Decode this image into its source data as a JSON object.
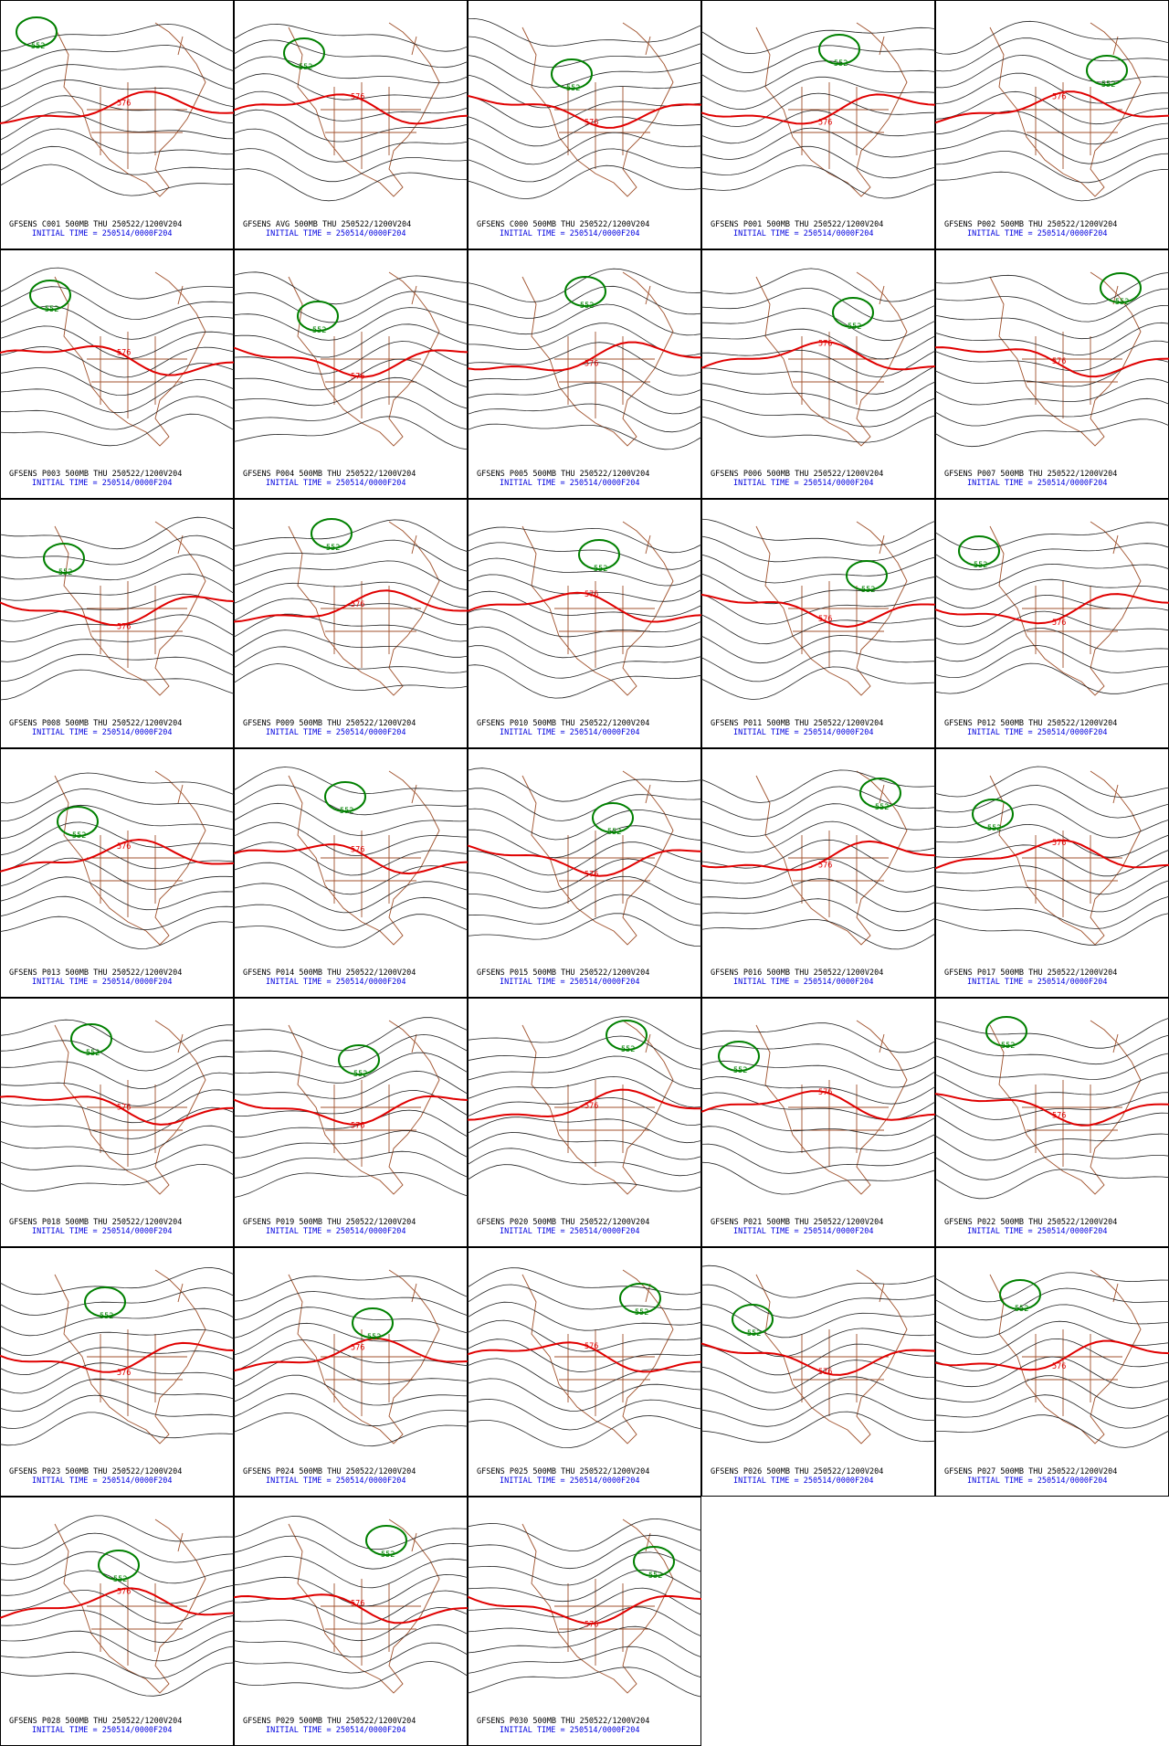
{
  "panels": [
    {
      "title": "GFSENS C001 500MB THU 250522/1200V204",
      "init_time": "INITIAL TIME = 250514/0000F204",
      "contour_labels": [
        "552",
        "576"
      ]
    },
    {
      "title": "GFSENS AVG 500MB THU 250522/1200V204",
      "init_time": "INITIAL TIME = 250514/0000F204",
      "contour_labels": [
        "552",
        "576"
      ]
    },
    {
      "title": "GFSENS C000 500MB THU 250522/1200V204",
      "init_time": "INITIAL TIME = 250514/0000F204",
      "contour_labels": [
        "552",
        "576"
      ]
    },
    {
      "title": "GFSENS P001 500MB THU 250522/1200V204",
      "init_time": "INITIAL TIME = 250514/0000F204",
      "contour_labels": [
        "552",
        "576"
      ]
    },
    {
      "title": "GFSENS P002 500MB THU 250522/1200V204",
      "init_time": "INITIAL TIME = 250514/0000F204",
      "contour_labels": [
        "552",
        "576"
      ]
    },
    {
      "title": "GFSENS P003 500MB THU 250522/1200V204",
      "init_time": "INITIAL TIME = 250514/0000F204",
      "contour_labels": [
        "552",
        "576"
      ]
    },
    {
      "title": "GFSENS P004 500MB THU 250522/1200V204",
      "init_time": "INITIAL TIME = 250514/0000F204",
      "contour_labels": [
        "552",
        "576"
      ]
    },
    {
      "title": "GFSENS P005 500MB THU 250522/1200V204",
      "init_time": "INITIAL TIME = 250514/0000F204",
      "contour_labels": [
        "552",
        "576"
      ]
    },
    {
      "title": "GFSENS P006 500MB THU 250522/1200V204",
      "init_time": "INITIAL TIME = 250514/0000F204",
      "contour_labels": [
        "552",
        "576"
      ]
    },
    {
      "title": "GFSENS P007 500MB THU 250522/1200V204",
      "init_time": "INITIAL TIME = 250514/0000F204",
      "contour_labels": [
        "552",
        "576"
      ]
    },
    {
      "title": "GFSENS P008 500MB THU 250522/1200V204",
      "init_time": "INITIAL TIME = 250514/0000F204",
      "contour_labels": [
        "552",
        "576"
      ]
    },
    {
      "title": "GFSENS P009 500MB THU 250522/1200V204",
      "init_time": "INITIAL TIME = 250514/0000F204",
      "contour_labels": [
        "552",
        "576"
      ]
    },
    {
      "title": "GFSENS P010 500MB THU 250522/1200V204",
      "init_time": "INITIAL TIME = 250514/0000F204",
      "contour_labels": [
        "552",
        "576"
      ]
    },
    {
      "title": "GFSENS P011 500MB THU 250522/1200V204",
      "init_time": "INITIAL TIME = 250514/0000F204",
      "contour_labels": [
        "552",
        "576"
      ]
    },
    {
      "title": "GFSENS P012 500MB THU 250522/1200V204",
      "init_time": "INITIAL TIME = 250514/0000F204",
      "contour_labels": [
        "552",
        "576"
      ]
    },
    {
      "title": "GFSENS P013 500MB THU 250522/1200V204",
      "init_time": "INITIAL TIME = 250514/0000F204",
      "contour_labels": [
        "552",
        "576"
      ]
    },
    {
      "title": "GFSENS P014 500MB THU 250522/1200V204",
      "init_time": "INITIAL TIME = 250514/0000F204",
      "contour_labels": [
        "552",
        "576"
      ]
    },
    {
      "title": "GFSENS P015 500MB THU 250522/1200V204",
      "init_time": "INITIAL TIME = 250514/0000F204",
      "contour_labels": [
        "552",
        "576"
      ]
    },
    {
      "title": "GFSENS P016 500MB THU 250522/1200V204",
      "init_time": "INITIAL TIME = 250514/0000F204",
      "contour_labels": [
        "552",
        "576"
      ]
    },
    {
      "title": "GFSENS P017 500MB THU 250522/1200V204",
      "init_time": "INITIAL TIME = 250514/0000F204",
      "contour_labels": [
        "552",
        "576"
      ]
    },
    {
      "title": "GFSENS P018 500MB THU 250522/1200V204",
      "init_time": "INITIAL TIME = 250514/0000F204",
      "contour_labels": [
        "552",
        "576"
      ]
    },
    {
      "title": "GFSENS P019 500MB THU 250522/1200V204",
      "init_time": "INITIAL TIME = 250514/0000F204",
      "contour_labels": [
        "552",
        "576"
      ]
    },
    {
      "title": "GFSENS P020 500MB THU 250522/1200V204",
      "init_time": "INITIAL TIME = 250514/0000F204",
      "contour_labels": [
        "552",
        "576"
      ]
    },
    {
      "title": "GFSENS P021 500MB THU 250522/1200V204",
      "init_time": "INITIAL TIME = 250514/0000F204",
      "contour_labels": [
        "552",
        "576"
      ]
    },
    {
      "title": "GFSENS P022 500MB THU 250522/1200V204",
      "init_time": "INITIAL TIME = 250514/0000F204",
      "contour_labels": [
        "552",
        "576"
      ]
    },
    {
      "title": "GFSENS P023 500MB THU 250522/1200V204",
      "init_time": "INITIAL TIME = 250514/0000F204",
      "contour_labels": [
        "552",
        "576"
      ]
    },
    {
      "title": "GFSENS P024 500MB THU 250522/1200V204",
      "init_time": "INITIAL TIME = 250514/0000F204",
      "contour_labels": [
        "552",
        "576"
      ]
    },
    {
      "title": "GFSENS P025 500MB THU 250522/1200V204",
      "init_time": "INITIAL TIME = 250514/0000F204",
      "contour_labels": [
        "552",
        "576"
      ]
    },
    {
      "title": "GFSENS P026 500MB THU 250522/1200V204",
      "init_time": "INITIAL TIME = 250514/0000F204",
      "contour_labels": [
        "552",
        "576"
      ]
    },
    {
      "title": "GFSENS P027 500MB THU 250522/1200V204",
      "init_time": "INITIAL TIME = 250514/0000F204",
      "contour_labels": [
        "552",
        "576"
      ]
    },
    {
      "title": "GFSENS P028 500MB THU 250522/1200V204",
      "init_time": "INITIAL TIME = 250514/0000F204",
      "contour_labels": [
        "552",
        "576"
      ]
    },
    {
      "title": "GFSENS P029 500MB THU 250522/1200V204",
      "init_time": "INITIAL TIME = 250514/0000F204",
      "contour_labels": [
        "552",
        "576"
      ]
    },
    {
      "title": "GFSENS P030 500MB THU 250522/1200V204",
      "init_time": "INITIAL TIME = 250514/0000F204",
      "contour_labels": [
        "552",
        "576"
      ]
    }
  ]
}
